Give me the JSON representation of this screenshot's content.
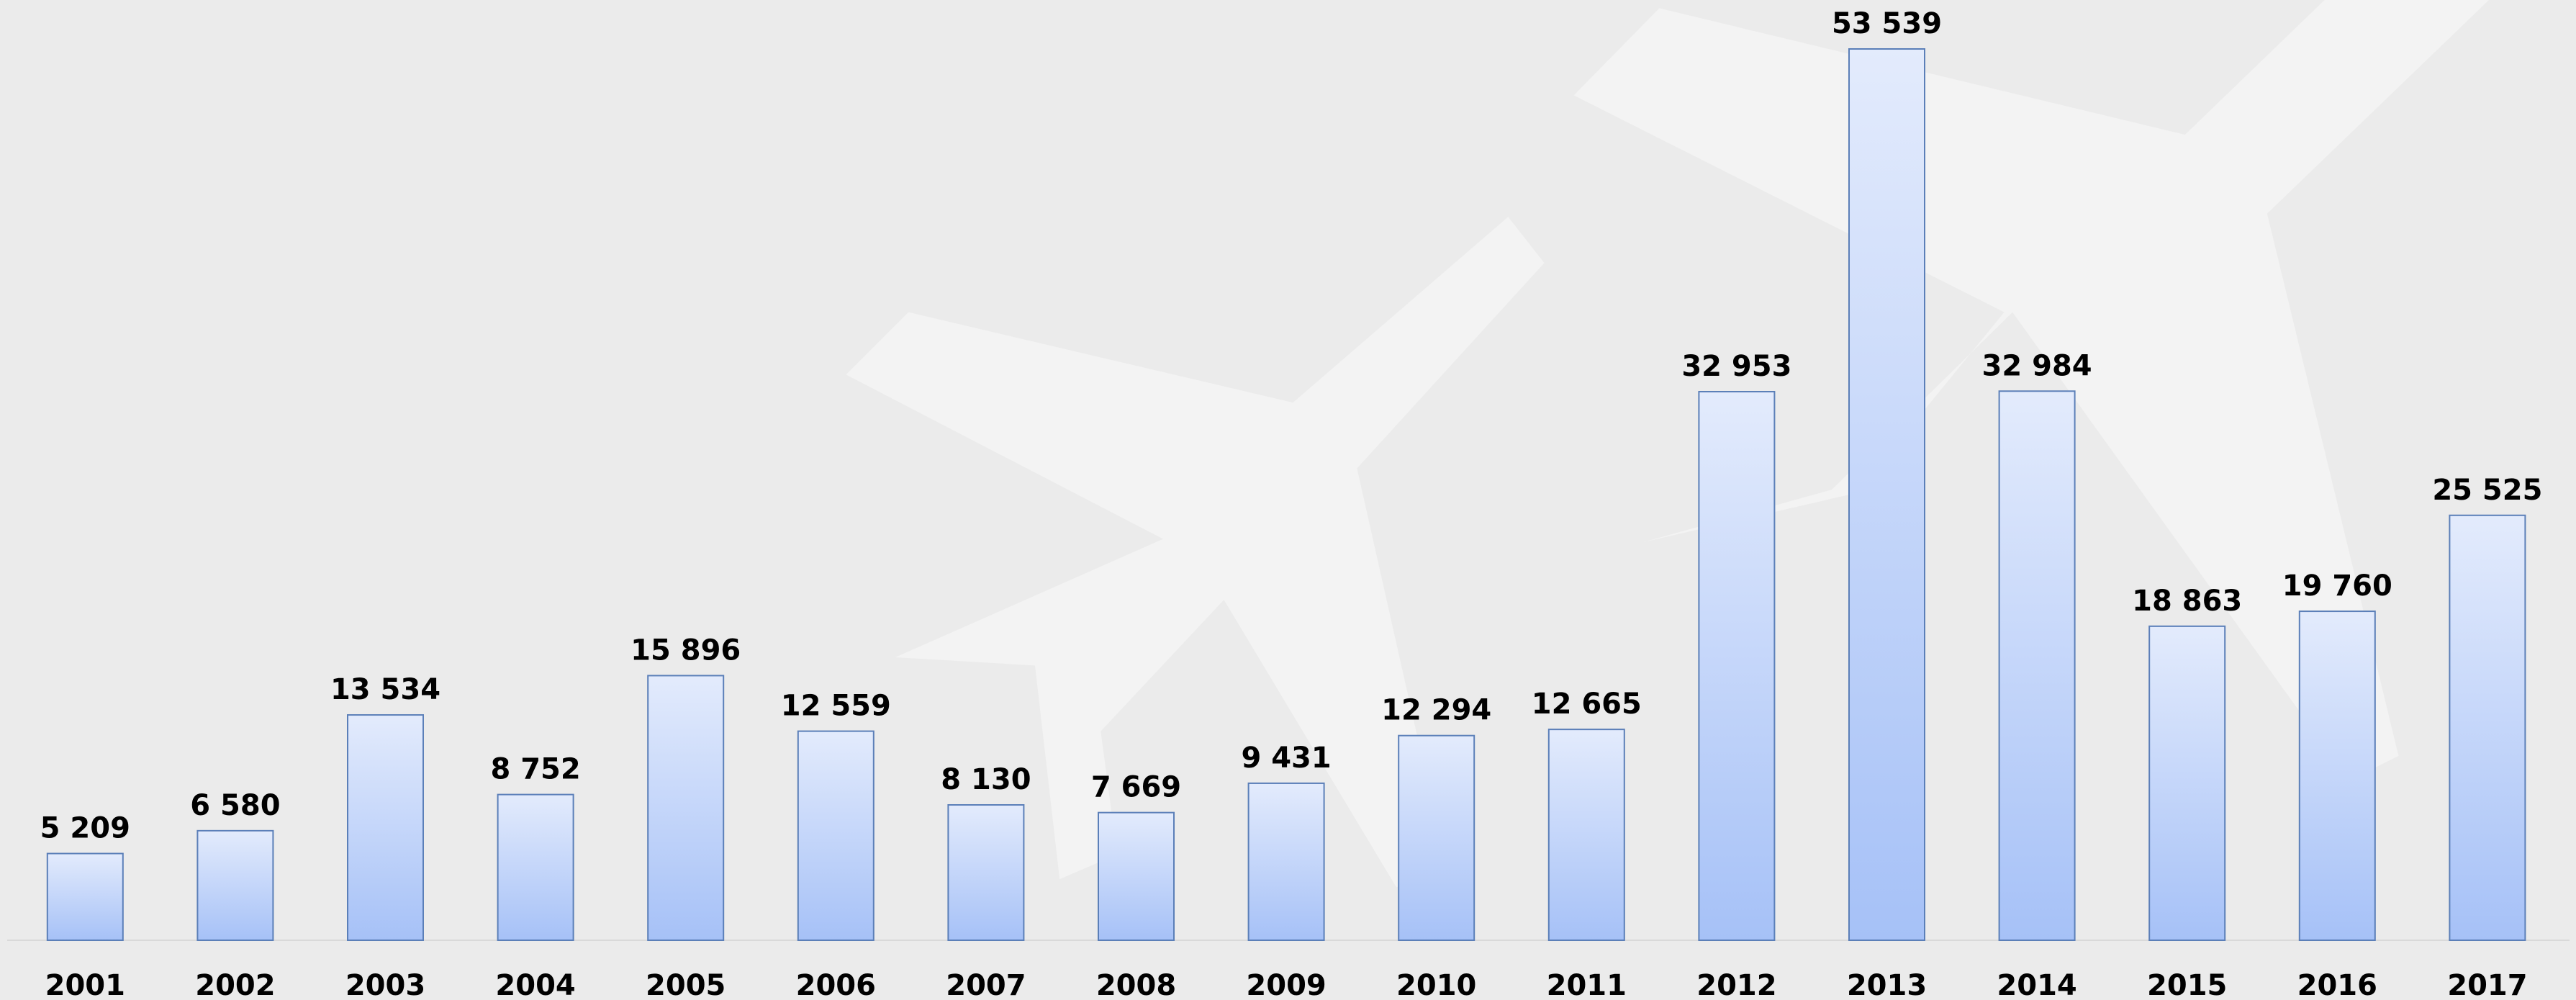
{
  "chart_data": {
    "type": "bar",
    "categories": [
      "2001",
      "2002",
      "2003",
      "2004",
      "2005",
      "2006",
      "2007",
      "2008",
      "2009",
      "2010",
      "2011",
      "2012",
      "2013",
      "2014",
      "2015",
      "2016",
      "2017"
    ],
    "values": [
      5209,
      6580,
      13534,
      8752,
      15896,
      12559,
      8130,
      7669,
      9431,
      12294,
      12665,
      32953,
      53539,
      32984,
      18863,
      19760,
      25525
    ],
    "value_labels": [
      "5 209",
      "6 580",
      "13 534",
      "8 752",
      "15 896",
      "12 559",
      "8 130",
      "7 669",
      "9 431",
      "12 294",
      "12 665",
      "32 953",
      "53 539",
      "32 984",
      "18 863",
      "19 760",
      "25 525"
    ],
    "color": "#a6c1f7"
  }
}
